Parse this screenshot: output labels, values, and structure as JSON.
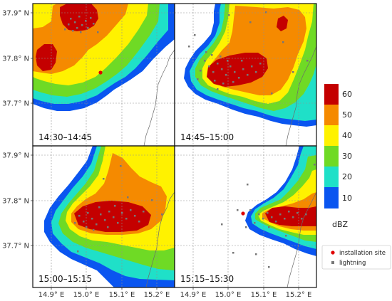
{
  "figure": {
    "y_tick_labels": [
      "37.9° N",
      "37.8° N",
      "37.7° N"
    ],
    "x_tick_labels": [
      "14.9° E",
      "15.0° E",
      "15.1° E",
      "15.2° E"
    ],
    "panels": [
      {
        "time_label": "14:30–14:45"
      },
      {
        "time_label": "14:45–15:00"
      },
      {
        "time_label": "15:00–15:15"
      },
      {
        "time_label": "15:15–15:30"
      }
    ]
  },
  "colorbar": {
    "unit": "dBZ",
    "levels": [
      {
        "label": "60",
        "color": "#c40000"
      },
      {
        "label": "50",
        "color": "#f58a00"
      },
      {
        "label": "40",
        "color": "#fff200"
      },
      {
        "label": "30",
        "color": "#6fda25"
      },
      {
        "label": "20",
        "color": "#1fe0c8"
      },
      {
        "label": "10",
        "color": "#0a55f0"
      }
    ]
  },
  "legend": {
    "items": [
      {
        "label": "installation site",
        "symbol": "red-dot-icon",
        "color": "#e00000"
      },
      {
        "label": "lightning",
        "symbol": "gray-square-icon",
        "color": "#777777"
      }
    ]
  }
}
